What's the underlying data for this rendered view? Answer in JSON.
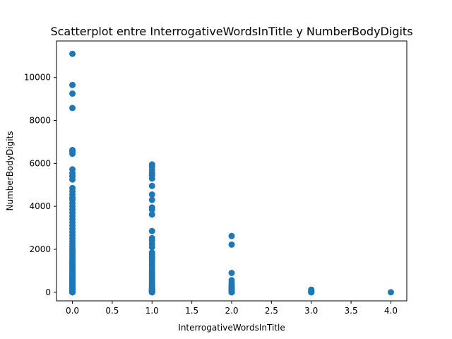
{
  "chart_data": {
    "type": "scatter",
    "title": "Scatterplot entre InterrogativeWordsInTitle y NumberBodyDigits",
    "xlabel": "InterrogativeWordsInTitle",
    "ylabel": "NumberBodyDigits",
    "xlim": [
      -0.2,
      4.2
    ],
    "ylim": [
      -400,
      11700
    ],
    "xticks": [
      0.0,
      0.5,
      1.0,
      1.5,
      2.0,
      2.5,
      3.0,
      3.5,
      4.0
    ],
    "xtick_labels": [
      "0.0",
      "0.5",
      "1.0",
      "1.5",
      "2.0",
      "2.5",
      "3.0",
      "3.5",
      "4.0"
    ],
    "yticks": [
      0,
      2000,
      4000,
      6000,
      8000,
      10000
    ],
    "ytick_labels": [
      "0",
      "2000",
      "4000",
      "6000",
      "8000",
      "10000"
    ],
    "grid": false,
    "marker_color": "#1f77b4",
    "series": [
      {
        "x": [
          0,
          0,
          0,
          0,
          0,
          0,
          0,
          0,
          0,
          0,
          0,
          0,
          0,
          0,
          0,
          0,
          0,
          0,
          0,
          0,
          0,
          0,
          0,
          0,
          0,
          0,
          0,
          0,
          0,
          0,
          0,
          0,
          0,
          0,
          0,
          0,
          0,
          0,
          0,
          0,
          0,
          0,
          0,
          0,
          0,
          0,
          0,
          0,
          0,
          0,
          0,
          0,
          0,
          0,
          0,
          0,
          0,
          0,
          0,
          0,
          0,
          0,
          0,
          0,
          0,
          0,
          0,
          0,
          0,
          0,
          0,
          0,
          0,
          0,
          0,
          0,
          0,
          0,
          0,
          0,
          0,
          0,
          0,
          0,
          0,
          1,
          1,
          1,
          1,
          1,
          1,
          1,
          1,
          1,
          1,
          1,
          1,
          1,
          1,
          1,
          1,
          1,
          1,
          1,
          1,
          1,
          1,
          1,
          1,
          1,
          1,
          1,
          1,
          1,
          1,
          1,
          1,
          1,
          1,
          1,
          1,
          1,
          1,
          1,
          1,
          1,
          1,
          1,
          1,
          1,
          1,
          1,
          1,
          1,
          1,
          1,
          1,
          1,
          1,
          1,
          1,
          2,
          2,
          2,
          2,
          2,
          2,
          2,
          2,
          2,
          2,
          2,
          2,
          2,
          2,
          2,
          2,
          2,
          2,
          2,
          2,
          2,
          2,
          2,
          3,
          3,
          3,
          3,
          3,
          3,
          3,
          3,
          4
        ],
        "y": [
          11100,
          9650,
          9250,
          8580,
          6620,
          6560,
          6450,
          5720,
          5540,
          5400,
          5250,
          4850,
          4700,
          4550,
          4400,
          4300,
          4150,
          4000,
          3850,
          3700,
          3550,
          3400,
          3250,
          3100,
          2950,
          2800,
          2650,
          2500,
          2380,
          2250,
          2120,
          2000,
          1900,
          1800,
          1700,
          1600,
          1500,
          1420,
          1350,
          1270,
          1200,
          1130,
          1060,
          1000,
          940,
          880,
          820,
          760,
          700,
          650,
          600,
          550,
          500,
          460,
          420,
          380,
          340,
          300,
          270,
          240,
          210,
          180,
          150,
          130,
          110,
          90,
          70,
          55,
          40,
          25,
          15,
          8,
          3,
          0,
          5,
          12,
          20,
          30,
          45,
          60,
          85,
          100,
          120,
          160,
          200,
          5950,
          5850,
          5700,
          5550,
          5450,
          5300,
          4950,
          4550,
          4300,
          3950,
          3850,
          3620,
          2850,
          2520,
          2400,
          2250,
          2100,
          1850,
          1750,
          1650,
          1550,
          1420,
          1300,
          1180,
          1050,
          950,
          860,
          780,
          700,
          630,
          560,
          500,
          440,
          390,
          340,
          290,
          250,
          210,
          170,
          140,
          110,
          85,
          60,
          40,
          25,
          12,
          5,
          0,
          3,
          18,
          35,
          50,
          75,
          100,
          130,
          160,
          2620,
          2220,
          900,
          560,
          420,
          320,
          250,
          200,
          160,
          130,
          100,
          80,
          60,
          45,
          30,
          20,
          12,
          6,
          2,
          0,
          10,
          25,
          40,
          120,
          80,
          50,
          30,
          15,
          5,
          0,
          2,
          0
        ]
      }
    ]
  }
}
